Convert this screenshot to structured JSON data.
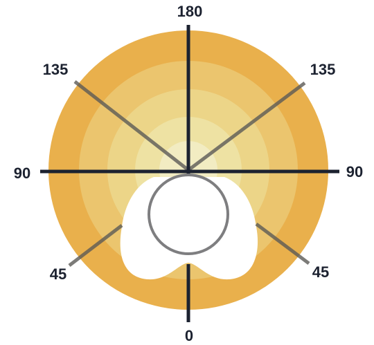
{
  "labels": {
    "top": "180",
    "upper_left": "135",
    "upper_right": "135",
    "left": "90",
    "right": "90",
    "lower_left": "45",
    "lower_right": "45",
    "bottom": "0"
  }
}
